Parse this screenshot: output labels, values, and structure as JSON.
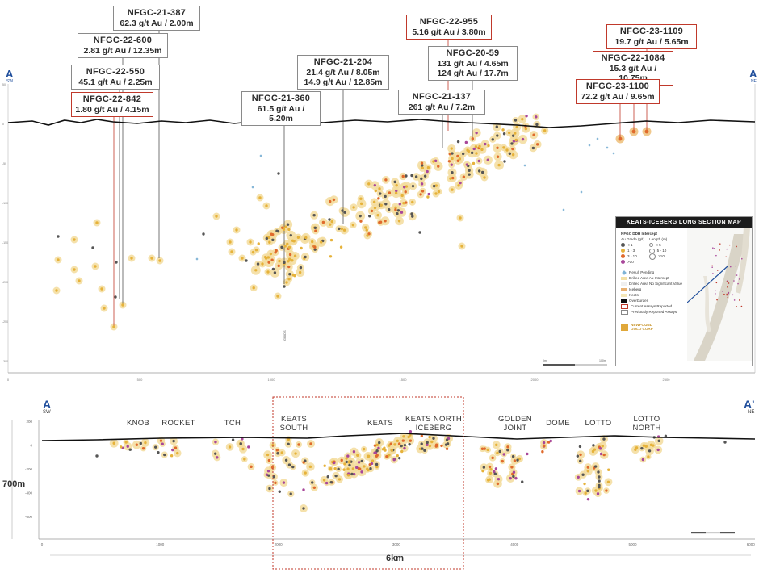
{
  "top_section": {
    "end_left": {
      "letter": "A",
      "direction": "SW"
    },
    "end_right": {
      "letter": "A",
      "direction": "NE"
    },
    "depth_ticks": [
      "50",
      "0",
      "-50",
      "-100",
      "-150",
      "-200",
      "-250",
      "-300",
      "-350",
      "-400"
    ],
    "distance_ticks": [
      "0",
      "500",
      "1000",
      "1500",
      "2000",
      "2500",
      "3000"
    ],
    "small_label": "GRIDS",
    "scale_bar": {
      "left": "0m",
      "right": "100m"
    }
  },
  "callouts": [
    {
      "hole": "NFGC-21-387",
      "lines": [
        "62.3 g/t Au / 2.00m"
      ],
      "red": false
    },
    {
      "hole": "NFGC-22-600",
      "lines": [
        "2.81 g/t Au / 12.35m"
      ],
      "red": false
    },
    {
      "hole": "NFGC-22-550",
      "lines": [
        "45.1 g/t Au / 2.25m"
      ],
      "red": false
    },
    {
      "hole": "NFGC-22-842",
      "lines": [
        "1.80 g/t Au / 4.15m"
      ],
      "red": true
    },
    {
      "hole": "NFGC-21-360",
      "lines": [
        "61.5 g/t Au / 5.20m"
      ],
      "red": false
    },
    {
      "hole": "NFGC-21-204",
      "lines": [
        "21.4 g/t Au / 8.05m",
        "14.9 g/t Au / 12.85m"
      ],
      "red": false
    },
    {
      "hole": "NFGC-22-955",
      "lines": [
        "5.16 g/t Au / 3.80m"
      ],
      "red": true
    },
    {
      "hole": "NFGC-20-59",
      "lines": [
        "131 g/t Au / 4.65m",
        "124 g/t Au / 17.7m"
      ],
      "red": false
    },
    {
      "hole": "NFGC-21-137",
      "lines": [
        "261 g/t Au / 7.2m"
      ],
      "red": false
    },
    {
      "hole": "NFGC-23-1109",
      "lines": [
        "19.7 g/t Au / 5.65m"
      ],
      "red": true
    },
    {
      "hole": "NFGC-22-1084",
      "lines": [
        "15.3 g/t Au / 10.75m"
      ],
      "red": true
    },
    {
      "hole": "NFGC-23-1100",
      "lines": [
        "72.2 g/t Au / 9.65m"
      ],
      "red": true
    }
  ],
  "legend": {
    "title": "KEATS-ICEBERG LONG SECTION MAP",
    "subtitle": "NFGC DDH Intercept",
    "grade_header": "Au Grade (g/t)",
    "length_header": "Length (m)",
    "grades": [
      {
        "label": "< 1",
        "color": "#555555"
      },
      {
        "label": "1 - 3",
        "color": "#e6b23a"
      },
      {
        "label": "3 - 10",
        "color": "#e06a2c"
      },
      {
        "label": ">10",
        "color": "#a8479a"
      }
    ],
    "lengths": [
      "< 5",
      "5 - 10",
      ">10"
    ],
    "items": [
      {
        "label": "Result Pending",
        "kind": "diamond",
        "color": "#7fb3d5"
      },
      {
        "label": "Drilled Area Au Intercept",
        "kind": "swatch",
        "color": "#f3e0a6"
      },
      {
        "label": "Drilled Area No Significant Value",
        "kind": "swatch",
        "color": "#efefef"
      },
      {
        "label": "Iceberg",
        "kind": "swatch",
        "color": "#e8b070"
      },
      {
        "label": "Keats",
        "kind": "swatch",
        "color": "#f5e7b8"
      },
      {
        "label": "Overburden",
        "kind": "swatch",
        "color": "#111111"
      },
      {
        "label": "Current Assays Reported",
        "kind": "box",
        "color": "#c0392b"
      },
      {
        "label": "Previously Reported Assays",
        "kind": "box",
        "color": "#888888"
      }
    ],
    "inset_section_letter": "A",
    "logo_text": "NEWFOUND GOLD CORP"
  },
  "bottom_section": {
    "end_left": {
      "letter": "A",
      "direction": "SW"
    },
    "end_right": {
      "letter": "A'",
      "direction": "NE"
    },
    "depth_ticks": [
      "200",
      "0",
      "-200",
      "-400",
      "-600"
    ],
    "distance_ticks": [
      "0",
      "1000",
      "2000",
      "3000",
      "4000",
      "5000",
      "6000"
    ],
    "height_label": "700m",
    "length_label": "6km",
    "regions": [
      {
        "lines": [
          "KNOB"
        ]
      },
      {
        "lines": [
          "ROCKET"
        ]
      },
      {
        "lines": [
          "TCH"
        ]
      },
      {
        "lines": [
          "KEATS",
          "SOUTH"
        ]
      },
      {
        "lines": [
          "KEATS"
        ]
      },
      {
        "lines": [
          "KEATS NORTH",
          "ICEBERG"
        ]
      },
      {
        "lines": [
          "GOLDEN",
          "JOINT"
        ]
      },
      {
        "lines": [
          "DOME"
        ]
      },
      {
        "lines": [
          "LOTTO"
        ]
      },
      {
        "lines": [
          "LOTTO",
          "NORTH"
        ]
      }
    ]
  },
  "colors": {
    "low": "#555555",
    "mid": "#e6b23a",
    "high": "#e06a2c",
    "vhigh": "#a8479a",
    "halo": "#f3dc9c",
    "red_box": "#c0392b",
    "blue_letter": "#1f4e9c"
  }
}
